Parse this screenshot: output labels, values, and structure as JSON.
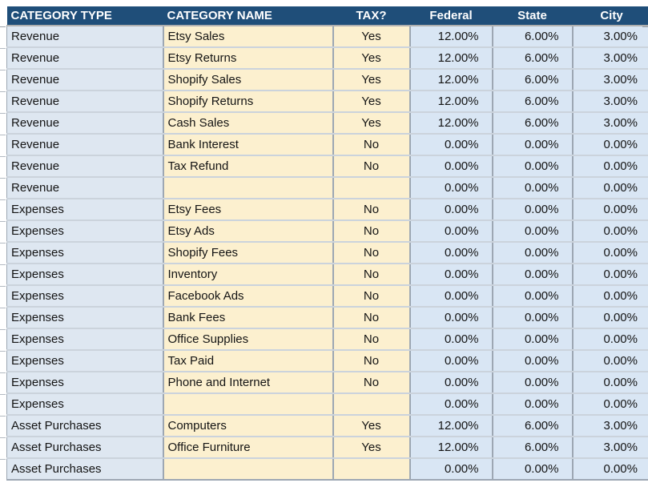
{
  "colors": {
    "header_bg": "#1F4E79",
    "header_text": "#FFFFFF",
    "type_col_bg": "#DEE7F1",
    "cream_col_bg": "#FCF0CF",
    "percent_col_bg": "#D9E6F4",
    "text": "#141414"
  },
  "table": {
    "columns": [
      {
        "key": "type",
        "label": "CATEGORY TYPE"
      },
      {
        "key": "name",
        "label": "CATEGORY NAME"
      },
      {
        "key": "tax",
        "label": "TAX?"
      },
      {
        "key": "federal",
        "label": "Federal"
      },
      {
        "key": "state",
        "label": "State"
      },
      {
        "key": "city",
        "label": "City"
      }
    ],
    "rows": [
      {
        "type": "Revenue",
        "name": "Etsy Sales",
        "tax": "Yes",
        "federal": "12.00%",
        "state": "6.00%",
        "city": "3.00%"
      },
      {
        "type": "Revenue",
        "name": "Etsy Returns",
        "tax": "Yes",
        "federal": "12.00%",
        "state": "6.00%",
        "city": "3.00%"
      },
      {
        "type": "Revenue",
        "name": "Shopify Sales",
        "tax": "Yes",
        "federal": "12.00%",
        "state": "6.00%",
        "city": "3.00%"
      },
      {
        "type": "Revenue",
        "name": "Shopify Returns",
        "tax": "Yes",
        "federal": "12.00%",
        "state": "6.00%",
        "city": "3.00%"
      },
      {
        "type": "Revenue",
        "name": "Cash Sales",
        "tax": "Yes",
        "federal": "12.00%",
        "state": "6.00%",
        "city": "3.00%"
      },
      {
        "type": "Revenue",
        "name": "Bank Interest",
        "tax": "No",
        "federal": "0.00%",
        "state": "0.00%",
        "city": "0.00%"
      },
      {
        "type": "Revenue",
        "name": "Tax Refund",
        "tax": "No",
        "federal": "0.00%",
        "state": "0.00%",
        "city": "0.00%"
      },
      {
        "type": "Revenue",
        "name": "",
        "tax": "",
        "federal": "0.00%",
        "state": "0.00%",
        "city": "0.00%"
      },
      {
        "type": "Expenses",
        "name": "Etsy Fees",
        "tax": "No",
        "federal": "0.00%",
        "state": "0.00%",
        "city": "0.00%"
      },
      {
        "type": "Expenses",
        "name": "Etsy Ads",
        "tax": "No",
        "federal": "0.00%",
        "state": "0.00%",
        "city": "0.00%"
      },
      {
        "type": "Expenses",
        "name": "Shopify Fees",
        "tax": "No",
        "federal": "0.00%",
        "state": "0.00%",
        "city": "0.00%"
      },
      {
        "type": "Expenses",
        "name": "Inventory",
        "tax": "No",
        "federal": "0.00%",
        "state": "0.00%",
        "city": "0.00%"
      },
      {
        "type": "Expenses",
        "name": "Facebook Ads",
        "tax": "No",
        "federal": "0.00%",
        "state": "0.00%",
        "city": "0.00%"
      },
      {
        "type": "Expenses",
        "name": "Bank Fees",
        "tax": "No",
        "federal": "0.00%",
        "state": "0.00%",
        "city": "0.00%"
      },
      {
        "type": "Expenses",
        "name": "Office Supplies",
        "tax": "No",
        "federal": "0.00%",
        "state": "0.00%",
        "city": "0.00%"
      },
      {
        "type": "Expenses",
        "name": "Tax Paid",
        "tax": "No",
        "federal": "0.00%",
        "state": "0.00%",
        "city": "0.00%"
      },
      {
        "type": "Expenses",
        "name": "Phone and Internet",
        "tax": "No",
        "federal": "0.00%",
        "state": "0.00%",
        "city": "0.00%"
      },
      {
        "type": "Expenses",
        "name": "",
        "tax": "",
        "federal": "0.00%",
        "state": "0.00%",
        "city": "0.00%"
      },
      {
        "type": "Asset Purchases",
        "name": "Computers",
        "tax": "Yes",
        "federal": "12.00%",
        "state": "6.00%",
        "city": "3.00%"
      },
      {
        "type": "Asset Purchases",
        "name": "Office Furniture",
        "tax": "Yes",
        "federal": "12.00%",
        "state": "6.00%",
        "city": "3.00%"
      },
      {
        "type": "Asset Purchases",
        "name": "",
        "tax": "",
        "federal": "0.00%",
        "state": "0.00%",
        "city": "0.00%"
      }
    ]
  }
}
